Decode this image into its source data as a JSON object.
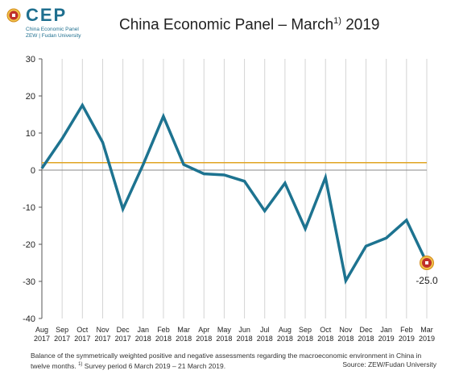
{
  "logo": {
    "name": "CEP",
    "line1": "China Economic Panel",
    "line2": "ZEW | Fudan University"
  },
  "header": {
    "title_main": "China Economic Panel – March",
    "title_sup": "1)",
    "title_year": "2019"
  },
  "chart_data": {
    "type": "line",
    "title": "China Economic Panel – March 1) 2019",
    "xlabel": "",
    "ylabel": "",
    "ylim": [
      -40,
      30
    ],
    "yticks": [
      30,
      20,
      10,
      0,
      -10,
      -20,
      -30,
      -40
    ],
    "grid": "vertical",
    "categories": [
      [
        "Aug",
        "2017"
      ],
      [
        "Sep",
        "2017"
      ],
      [
        "Oct",
        "2017"
      ],
      [
        "Nov",
        "2017"
      ],
      [
        "Dec",
        "2017"
      ],
      [
        "Jan",
        "2018"
      ],
      [
        "Feb",
        "2018"
      ],
      [
        "Mar",
        "2018"
      ],
      [
        "Apr",
        "2018"
      ],
      [
        "May",
        "2018"
      ],
      [
        "Jun",
        "2018"
      ],
      [
        "Jul",
        "2018"
      ],
      [
        "Aug",
        "2018"
      ],
      [
        "Sep",
        "2018"
      ],
      [
        "Oct",
        "2018"
      ],
      [
        "Nov",
        "2018"
      ],
      [
        "Dec",
        "2018"
      ],
      [
        "Jan",
        "2019"
      ],
      [
        "Feb",
        "2019"
      ],
      [
        "Mar",
        "2019"
      ]
    ],
    "series": [
      {
        "values": [
          0.5,
          8.5,
          17.5,
          7.5,
          -10.5,
          1.5,
          14.5,
          1.5,
          -1.0,
          -1.3,
          -3.0,
          -11.0,
          -3.5,
          -15.8,
          -2.0,
          -29.8,
          -20.5,
          -18.3,
          -13.5,
          -25.0
        ],
        "color": "#1d7390"
      }
    ],
    "reference_line": {
      "value": 2.0,
      "color": "#e0a422"
    },
    "last_label": "-25.0",
    "marker_color": "#c0302b"
  },
  "footer": {
    "line1": "Balance of the symmetrically weighted positive and negative assessments regarding the macroeconomic environment in China in",
    "line2a": "twelve months.",
    "line2_sup": "1)",
    "line2b": "Survey period 6 March 2019 – 21 March 2019.",
    "source": "Source: ZEW/Fudan University"
  }
}
